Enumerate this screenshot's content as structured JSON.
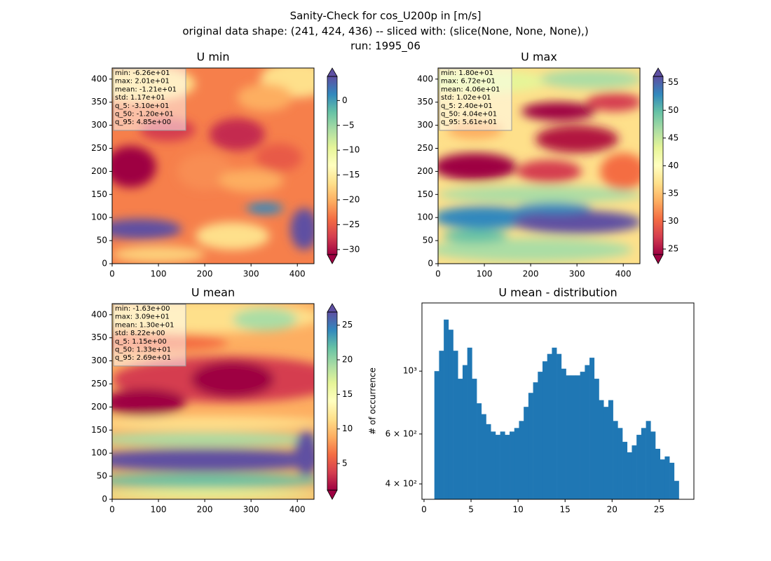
{
  "suptitle": [
    "Sanity-Check for cos_U200p in [m/s]",
    "original data shape: (241, 424, 436) -- sliced with: (slice(None, None, None),)",
    "run: 1995_06"
  ],
  "chart_data": [
    {
      "type": "heatmap",
      "title": "U min",
      "colormap": "Spectral",
      "colorbar_extend": "both",
      "xlim": [
        0,
        436
      ],
      "ylim": [
        0,
        424
      ],
      "xticks": [
        0,
        100,
        200,
        300,
        400
      ],
      "yticks": [
        0,
        50,
        100,
        150,
        200,
        250,
        300,
        350,
        400
      ],
      "clim": [
        -31.0,
        4.85
      ],
      "cticks": [
        {
          "value": -30,
          "label": "−30"
        },
        {
          "value": -25,
          "label": "−25"
        },
        {
          "value": -20,
          "label": "−20"
        },
        {
          "value": -15,
          "label": "−15"
        },
        {
          "value": -10,
          "label": "−10"
        },
        {
          "value": -5,
          "label": "−5"
        },
        0
      ],
      "stats": [
        "min: -6.26e+01",
        "max: 2.01e+01",
        "mean: -1.21e+01",
        "std: 1.17e+01",
        "q_5: -3.10e+01",
        "q_50: -1.20e+01",
        "q_95: 4.85e+00"
      ]
    },
    {
      "type": "heatmap",
      "title": "U max",
      "colormap": "Spectral",
      "colorbar_extend": "both",
      "xlim": [
        0,
        436
      ],
      "ylim": [
        0,
        424
      ],
      "xticks": [
        0,
        100,
        200,
        300,
        400
      ],
      "yticks": [
        0,
        50,
        100,
        150,
        200,
        250,
        300,
        350,
        400
      ],
      "clim": [
        24.0,
        56.1
      ],
      "cticks": [
        25,
        30,
        35,
        40,
        45,
        50,
        55
      ],
      "stats": [
        "min: 1.80e+01",
        "max: 6.72e+01",
        "mean: 4.06e+01",
        "std: 1.02e+01",
        "q_5: 2.40e+01",
        "q_50: 4.04e+01",
        "q_95: 5.61e+01"
      ]
    },
    {
      "type": "heatmap",
      "title": "U mean",
      "colormap": "Spectral",
      "colorbar_extend": "both",
      "xlim": [
        0,
        436
      ],
      "ylim": [
        0,
        424
      ],
      "xticks": [
        0,
        100,
        200,
        300,
        400
      ],
      "yticks": [
        0,
        50,
        100,
        150,
        200,
        250,
        300,
        350,
        400
      ],
      "clim": [
        1.15,
        26.9
      ],
      "cticks": [
        5,
        10,
        15,
        20,
        25
      ],
      "stats": [
        "min: -1.63e+00",
        "max: 3.09e+01",
        "mean: 1.30e+01",
        "std: 8.22e+00",
        "q_5: 1.15e+00",
        "q_50: 1.33e+01",
        "q_95: 2.69e+01"
      ]
    },
    {
      "type": "histogram",
      "title": "U mean - distribution",
      "ylabel": "# of occurrence",
      "color": "#1f77b4",
      "xlim": [
        -0.22,
        28.7
      ],
      "xticks": [
        0,
        5,
        10,
        15,
        20,
        25
      ],
      "ylog": true,
      "ylim": [
        353,
        1740
      ],
      "yticks": [
        {
          "value": 400,
          "label": "4 × 10²"
        },
        {
          "value": 600,
          "label": "6 × 10²"
        },
        {
          "value": 1000,
          "label": "10³"
        }
      ],
      "bins": [
        1.1,
        1.6,
        2.1,
        2.6,
        3.1,
        3.6,
        4.1,
        4.6,
        5.1,
        5.6,
        6.1,
        6.6,
        7.1,
        7.6,
        8.1,
        8.6,
        9.1,
        9.6,
        10.1,
        10.6,
        11.1,
        11.6,
        12.1,
        12.6,
        13.1,
        13.6,
        14.1,
        14.6,
        15.1,
        15.6,
        16.1,
        16.6,
        17.1,
        17.6,
        18.1,
        18.6,
        19.1,
        19.6,
        20.1,
        20.6,
        21.1,
        21.6,
        22.1,
        22.6,
        23.1,
        23.6,
        24.1,
        24.6,
        25.1,
        25.6,
        26.1,
        26.6,
        27.1
      ],
      "counts": [
        1000,
        1180,
        1520,
        1400,
        1180,
        940,
        1050,
        1210,
        940,
        770,
        705,
        650,
        612,
        596,
        612,
        596,
        612,
        630,
        667,
        748,
        838,
        913,
        995,
        1083,
        1150,
        1210,
        1150,
        1020,
        966,
        966,
        966,
        995,
        1050,
        1115,
        940,
        790,
        748,
        790,
        667,
        630,
        563,
        517,
        547,
        596,
        630,
        667,
        612,
        532,
        488,
        500,
        475,
        410
      ]
    }
  ]
}
